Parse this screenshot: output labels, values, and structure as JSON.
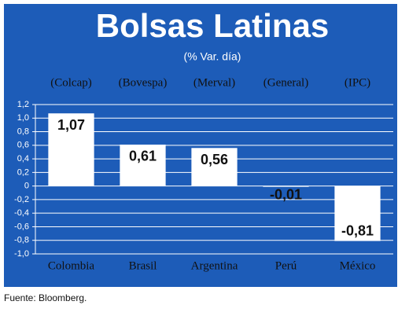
{
  "chart_data": {
    "type": "bar",
    "title": "Bolsas Latinas",
    "subtitle": "(% Var. día)",
    "categories": [
      "Colombia",
      "Brasil",
      "Argentina",
      "Perú",
      "México"
    ],
    "index_names": [
      "(Colcap)",
      "(Bovespa)",
      "(Merval)",
      "(General)",
      "(IPC)"
    ],
    "values": [
      1.07,
      0.61,
      0.56,
      -0.01,
      -0.81
    ],
    "value_labels": [
      "1,07",
      "0,61",
      "0,56",
      "-0,01",
      "-0,81"
    ],
    "color": "#ffffff",
    "ylim": [
      -1.0,
      1.2
    ],
    "yticks": [
      {
        "value": -1.0,
        "label": "-1,0"
      },
      {
        "value": -0.8,
        "label": "-0,8"
      },
      {
        "value": -0.6,
        "label": "-0,6"
      },
      {
        "value": -0.4,
        "label": "-0,4"
      },
      {
        "value": -0.2,
        "label": "-0,2"
      },
      0,
      {
        "value": 0.2,
        "label": "0,2"
      },
      {
        "value": 0.4,
        "label": "0,4"
      },
      {
        "value": 0.6,
        "label": "0,6"
      },
      {
        "value": 0.8,
        "label": "0,8"
      },
      {
        "value": 1.0,
        "label": "1,0"
      },
      {
        "value": 1.2,
        "label": "1,2"
      }
    ],
    "grid": true,
    "source": "Fuente: Bloomberg."
  }
}
